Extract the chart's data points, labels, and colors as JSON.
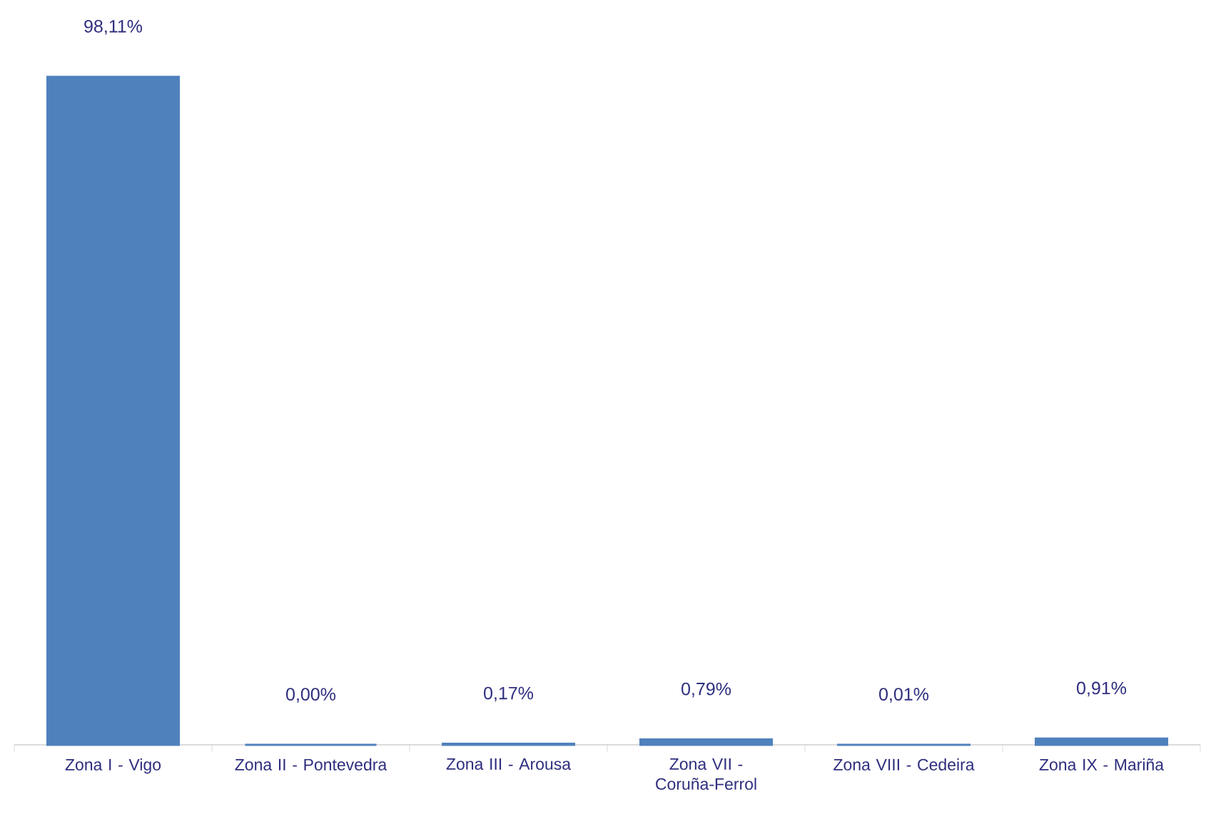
{
  "chart_data": {
    "type": "bar",
    "categories": [
      "Zona I - Vigo",
      "Zona II - Pontevedra",
      "Zona III - Arousa",
      "Zona VII - Coruña-Ferrol",
      "Zona VIII - Cedeira",
      "Zona IX - Mariña"
    ],
    "values": [
      98.11,
      0.0,
      0.17,
      0.79,
      0.01,
      0.91
    ],
    "color": "#4f81bd",
    "value_labels": [
      "98,11%",
      "0,00%",
      "0,17%",
      "0,79%",
      "0,01%",
      "0,91%"
    ]
  }
}
